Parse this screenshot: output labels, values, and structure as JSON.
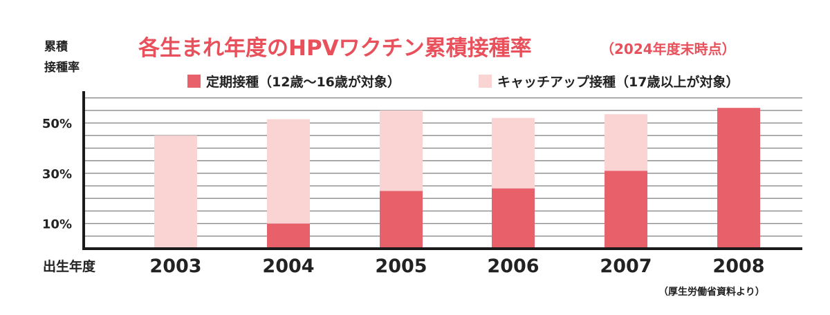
{
  "colors": {
    "regular": "#e8606a",
    "catchup": "#f9d4d2",
    "title": "#e8505b",
    "grid": "#8a8a8a",
    "axis": "#1a1a1a"
  },
  "chart_data": {
    "type": "bar",
    "stacked": true,
    "title": "各生まれ年度のHPVワクチン累積接種率",
    "subtitle": "（2024年度末時点）",
    "ylabel_line1": "累積",
    "ylabel_line2": "接種率",
    "xlabel": "出生年度",
    "source": "（厚生労働省資料より）",
    "categories": [
      "2003",
      "2004",
      "2005",
      "2006",
      "2007",
      "2008"
    ],
    "series": [
      {
        "name": "定期接種（12歳～16歳が対象）",
        "values": [
          0.5,
          10,
          23,
          24,
          31,
          56
        ]
      },
      {
        "name": "キャッチアップ接種（17歳以上が対象）",
        "values": [
          44.5,
          41.5,
          32,
          28,
          22.5,
          0
        ]
      }
    ],
    "yticks": [
      "10%",
      "30%",
      "50%"
    ],
    "ytick_values": [
      10,
      30,
      50
    ],
    "ylim": [
      0,
      61
    ],
    "grid": true,
    "legend_position": "top-right"
  }
}
